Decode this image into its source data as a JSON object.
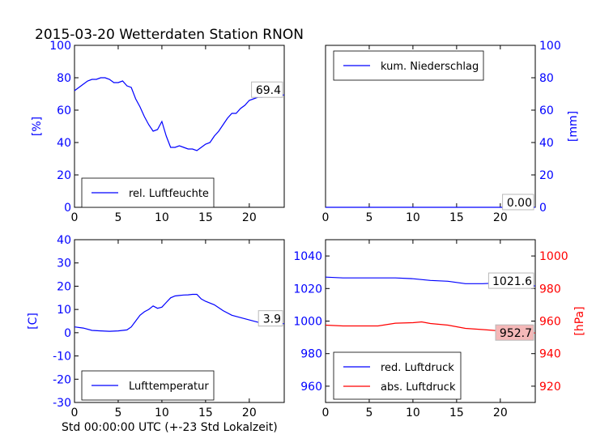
{
  "figure": {
    "title": "2015-03-20 Wetterdaten Station RNON",
    "xlabel": "Std 00:00:00 UTC (+-23 Std Lokalzeit)"
  },
  "colors": {
    "blue": "#0000ff",
    "red": "#ff0000",
    "black": "#000000",
    "last_red_box": "#f4b8b8"
  },
  "chart_data": [
    {
      "type": "line",
      "panel": "humidity",
      "ylabel": "[%]",
      "xlim": [
        0,
        24
      ],
      "ylim": [
        0,
        100
      ],
      "xticks": [
        0,
        5,
        10,
        15,
        20
      ],
      "yticks": [
        0,
        20,
        40,
        60,
        80,
        100
      ],
      "legend_position": "lower left",
      "last_value_label": "69.4",
      "series": [
        {
          "name": "rel. Luftfeuchte",
          "color": "#0000ff",
          "x": [
            0,
            0.5,
            1,
            1.5,
            2,
            2.5,
            3,
            3.5,
            4,
            4.5,
            5,
            5.5,
            6,
            6.5,
            7,
            7.5,
            8,
            8.5,
            9,
            9.5,
            10,
            10.5,
            11,
            11.5,
            12,
            12.5,
            13,
            13.5,
            14,
            14.5,
            15,
            15.5,
            16,
            16.5,
            17,
            17.5,
            18,
            18.5,
            19,
            19.5,
            20,
            20.5,
            21,
            21.5,
            22,
            22.5,
            23,
            23.5,
            24
          ],
          "y": [
            72,
            74,
            76,
            78,
            79,
            79,
            80,
            80,
            79,
            77,
            77,
            78,
            75,
            74,
            67,
            62,
            56,
            51,
            47,
            48,
            53,
            44,
            37,
            37,
            38,
            37,
            36,
            36,
            35,
            37,
            39,
            40,
            44,
            47,
            51,
            55,
            58,
            58,
            61,
            63,
            66,
            67,
            68,
            68,
            69,
            70,
            69,
            69,
            69.4
          ]
        }
      ]
    },
    {
      "type": "line",
      "panel": "precipitation",
      "ylabel": "[mm]",
      "xlim": [
        0,
        24
      ],
      "ylim": [
        0,
        100
      ],
      "xticks": [
        0,
        5,
        10,
        15,
        20
      ],
      "yticks": [
        0,
        20,
        40,
        60,
        80,
        100
      ],
      "legend_position": "upper left",
      "last_value_label": "0.00",
      "series": [
        {
          "name": "kum. Niederschlag",
          "color": "#0000ff",
          "x": [
            0,
            24
          ],
          "y": [
            0,
            0
          ]
        }
      ]
    },
    {
      "type": "line",
      "panel": "temperature",
      "ylabel": "[C]",
      "xlim": [
        0,
        24
      ],
      "ylim": [
        -30,
        40
      ],
      "xticks": [
        0,
        5,
        10,
        15,
        20
      ],
      "yticks": [
        -30,
        -20,
        -10,
        0,
        10,
        20,
        30,
        40
      ],
      "legend_position": "lower left",
      "last_value_label": "3.9",
      "series": [
        {
          "name": "Lufttemperatur",
          "color": "#0000ff",
          "x": [
            0,
            1,
            2,
            3,
            4,
            5,
            5.5,
            6,
            6.5,
            7,
            7.5,
            8,
            8.5,
            9,
            9.5,
            10,
            10.5,
            11,
            11.5,
            12,
            12.5,
            13,
            13.5,
            14,
            14.5,
            15,
            16,
            17,
            18,
            19,
            20,
            21,
            22,
            23,
            24
          ],
          "y": [
            2.5,
            2,
            1,
            0.8,
            0.6,
            0.8,
            1,
            1.2,
            2.5,
            5,
            7.5,
            9,
            10,
            11.5,
            10.5,
            11,
            13,
            15,
            15.8,
            16,
            16.2,
            16.3,
            16.5,
            16.5,
            14.5,
            13.5,
            12,
            9.5,
            7.5,
            6.5,
            5.5,
            4.5,
            4,
            3.9,
            3.9
          ]
        }
      ]
    },
    {
      "type": "line",
      "panel": "pressure",
      "ylabel_right": "[hPa]",
      "xlim": [
        0,
        24
      ],
      "ylim_left": [
        950,
        1050
      ],
      "ylim_right": [
        910,
        1010
      ],
      "xticks": [
        0,
        5,
        10,
        15,
        20
      ],
      "yticks_left": [
        960,
        980,
        1000,
        1020,
        1040
      ],
      "yticks_right": [
        920,
        940,
        960,
        980,
        1000
      ],
      "legend_position": "lower left",
      "series": [
        {
          "name": "red. Luftdruck",
          "color": "#0000ff",
          "axis": "left",
          "last_value_label": "1021.6",
          "x": [
            0,
            2,
            4,
            6,
            8,
            10,
            12,
            14,
            16,
            18,
            20,
            22,
            24
          ],
          "y": [
            1027,
            1026.5,
            1026.5,
            1026.5,
            1026.5,
            1026,
            1025,
            1024.5,
            1023,
            1023,
            1023.5,
            1022,
            1021.6
          ]
        },
        {
          "name": "abs. Luftdruck",
          "color": "#ff0000",
          "axis": "right",
          "last_value_label": "952.7",
          "x": [
            0,
            2,
            4,
            6,
            8,
            10,
            11,
            12,
            14,
            16,
            18,
            20,
            22,
            24
          ],
          "y": [
            957.5,
            957,
            957,
            957,
            958.7,
            959,
            959.5,
            958.5,
            957.5,
            955.5,
            954.8,
            954,
            953.2,
            952.7
          ]
        }
      ]
    }
  ]
}
